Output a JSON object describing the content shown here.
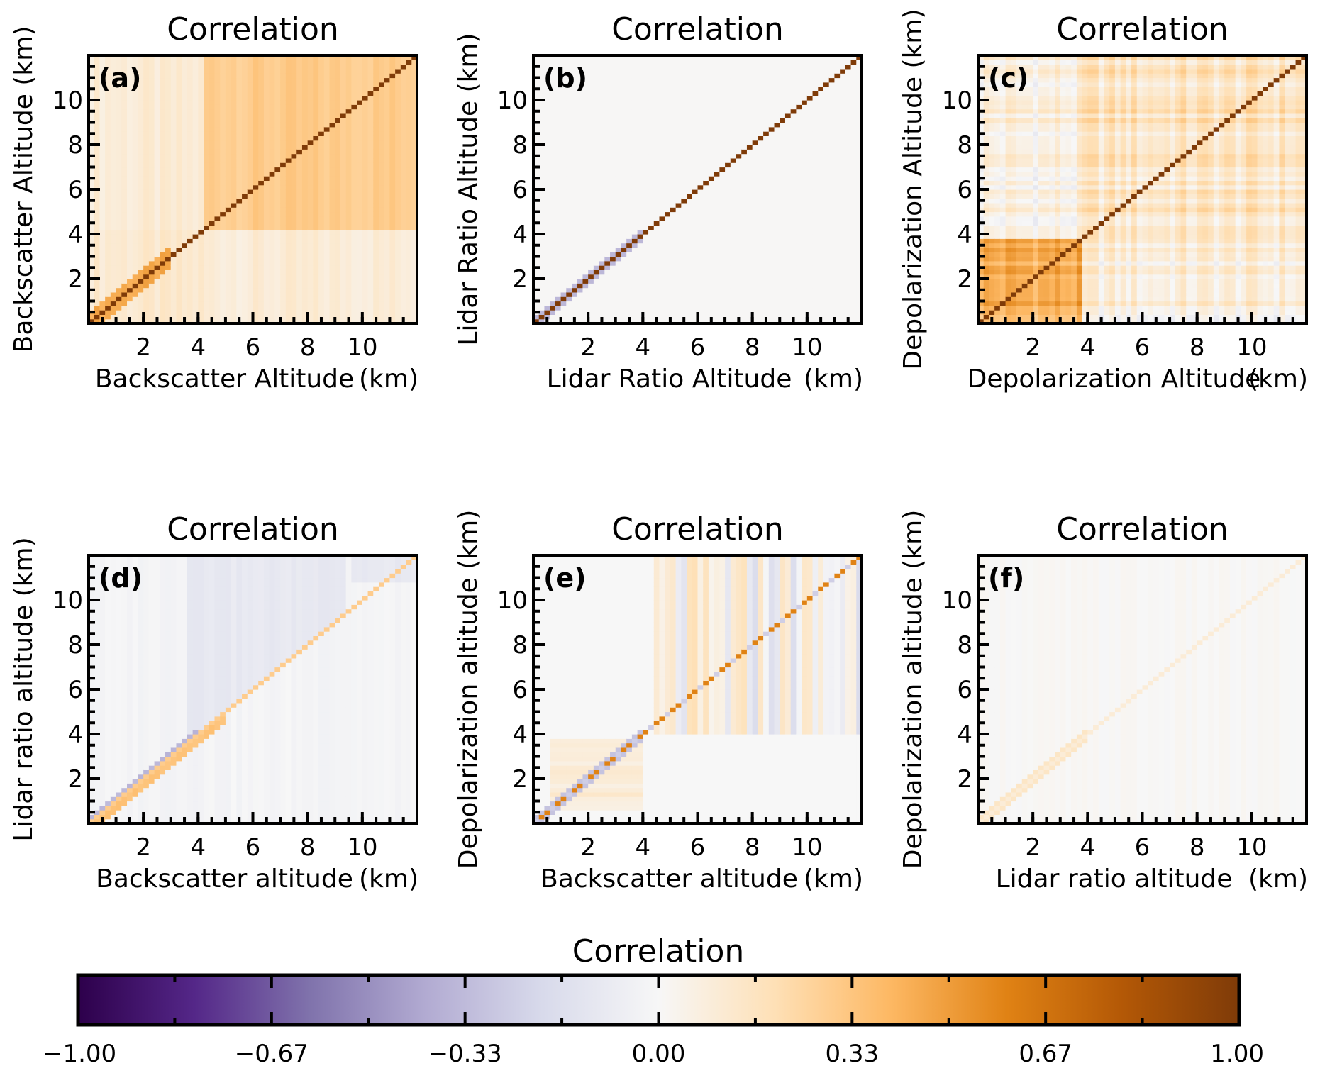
{
  "figure": {
    "colorbar": {
      "title": "Correlation",
      "ticks": [
        "−1.00",
        "−0.67",
        "−0.33",
        "0.00",
        "0.33",
        "0.67",
        "1.00"
      ],
      "range": [
        -1,
        1
      ],
      "colormap": [
        "#2d004b",
        "#542788",
        "#8073ac",
        "#b2abd2",
        "#d8daeb",
        "#f7f7f7",
        "#fee0b6",
        "#fdb863",
        "#e08214",
        "#b35806",
        "#7f3b08"
      ]
    }
  },
  "chart_data": [
    {
      "type": "heatmap",
      "panel": "(a)",
      "title": "Correlation",
      "xlabel": "Backscatter Altitude",
      "xunit": "(km)",
      "ylabel": "Backscatter Altitude (km)",
      "xlim": [
        0,
        12
      ],
      "ylim": [
        0,
        12
      ],
      "xticks": [
        2,
        4,
        6,
        8,
        10
      ],
      "yticks": [
        2,
        4,
        6,
        8,
        10
      ],
      "diagonal": 1.0,
      "regions": [
        {
          "x": [
            0,
            4.3
          ],
          "y": [
            0,
            4.3
          ],
          "value": 0.12
        },
        {
          "x": [
            4.3,
            12
          ],
          "y": [
            4.3,
            12
          ],
          "value": 0.3
        },
        {
          "x": [
            0,
            4.3
          ],
          "y": [
            4.3,
            12
          ],
          "value": 0.1
        },
        {
          "x": [
            4.3,
            12
          ],
          "y": [
            0,
            4.3
          ],
          "value": 0.1
        }
      ],
      "near_diagonal": [
        {
          "x": [
            0,
            3
          ],
          "value": 0.45
        }
      ]
    },
    {
      "type": "heatmap",
      "panel": "(b)",
      "title": "Correlation",
      "xlabel": "Lidar Ratio Altitude",
      "xunit": "(km)",
      "ylabel": "Lidar Ratio Altitude (km)",
      "xlim": [
        0,
        12
      ],
      "ylim": [
        0,
        12
      ],
      "xticks": [
        2,
        4,
        6,
        8,
        10
      ],
      "yticks": [
        2,
        4,
        6,
        8,
        10
      ],
      "diagonal": 1.0,
      "regions": [
        {
          "x": [
            0,
            12
          ],
          "y": [
            0,
            12
          ],
          "value": 0.0
        }
      ],
      "near_diagonal": [
        {
          "x": [
            0,
            4
          ],
          "value": -0.35
        }
      ]
    },
    {
      "type": "heatmap",
      "panel": "(c)",
      "title": "Correlation",
      "xlabel": "Depolarization Altitude",
      "xunit": "(km)",
      "ylabel": "Depolarization Altitude (km)",
      "xlim": [
        0,
        12
      ],
      "ylim": [
        0,
        12
      ],
      "xticks": [
        2,
        4,
        6,
        8,
        10
      ],
      "yticks": [
        2,
        4,
        6,
        8,
        10
      ],
      "diagonal": 1.0,
      "regions": [
        {
          "x": [
            0,
            3.8
          ],
          "y": [
            0,
            3.8
          ],
          "value": 0.42
        },
        {
          "x": [
            3.8,
            12
          ],
          "y": [
            3.8,
            12
          ],
          "value": 0.15
        },
        {
          "x": [
            0,
            3.8
          ],
          "y": [
            3.8,
            12
          ],
          "value": 0.06
        },
        {
          "x": [
            3.8,
            12
          ],
          "y": [
            0,
            3.8
          ],
          "value": 0.05
        }
      ],
      "near_diagonal": []
    },
    {
      "type": "heatmap",
      "panel": "(d)",
      "title": "Correlation",
      "xlabel": "Backscatter altitude",
      "xunit": "(km)",
      "ylabel": "Lidar ratio altitude  (km)",
      "xlim": [
        0,
        12
      ],
      "ylim": [
        0,
        12
      ],
      "xticks": [
        2,
        4,
        6,
        8,
        10
      ],
      "yticks": [
        2,
        4,
        6,
        8,
        10
      ],
      "diagonal": 0.3,
      "regions": [
        {
          "x": [
            0,
            12
          ],
          "y": [
            0,
            12
          ],
          "value": -0.02
        },
        {
          "x": [
            3.5,
            9.5
          ],
          "y": "upper-triangle",
          "value": -0.1
        }
      ],
      "near_diagonal": [
        {
          "x": [
            0,
            4
          ],
          "value": -0.35
        }
      ]
    },
    {
      "type": "heatmap",
      "panel": "(e)",
      "title": "Correlation",
      "xlabel": "Backscatter altitude",
      "xunit": "(km)",
      "ylabel": "Depolarization altitude (km)",
      "xlim": [
        0,
        12
      ],
      "ylim": [
        0,
        12
      ],
      "xticks": [
        2,
        4,
        6,
        8,
        10
      ],
      "yticks": [
        2,
        4,
        6,
        8,
        10
      ],
      "diagonal": 0.6,
      "regions": [
        {
          "x": [
            0,
            12
          ],
          "y": [
            0,
            12
          ],
          "value": 0.0
        },
        {
          "x": [
            0.5,
            4
          ],
          "y": [
            0.5,
            3.8
          ],
          "value": 0.1
        },
        {
          "x": [
            4.3,
            12
          ],
          "y": [
            4,
            12
          ],
          "value": "stripes ±0.2"
        }
      ],
      "near_diagonal": [
        {
          "x": [
            0,
            4
          ],
          "value": -0.3
        }
      ]
    },
    {
      "type": "heatmap",
      "panel": "(f)",
      "title": "Correlation",
      "xlabel": "Lidar ratio altitude",
      "xunit": "(km)",
      "ylabel": "Depolarization altitude (km)",
      "xlim": [
        0,
        12
      ],
      "ylim": [
        0,
        12
      ],
      "xticks": [
        2,
        4,
        6,
        8,
        10
      ],
      "yticks": [
        2,
        4,
        6,
        8,
        10
      ],
      "diagonal": 0.1,
      "regions": [
        {
          "x": [
            0,
            12
          ],
          "y": [
            0,
            12
          ],
          "value": 0.0
        }
      ],
      "near_diagonal": [
        {
          "x": [
            0,
            4
          ],
          "value": 0.15
        }
      ]
    }
  ]
}
